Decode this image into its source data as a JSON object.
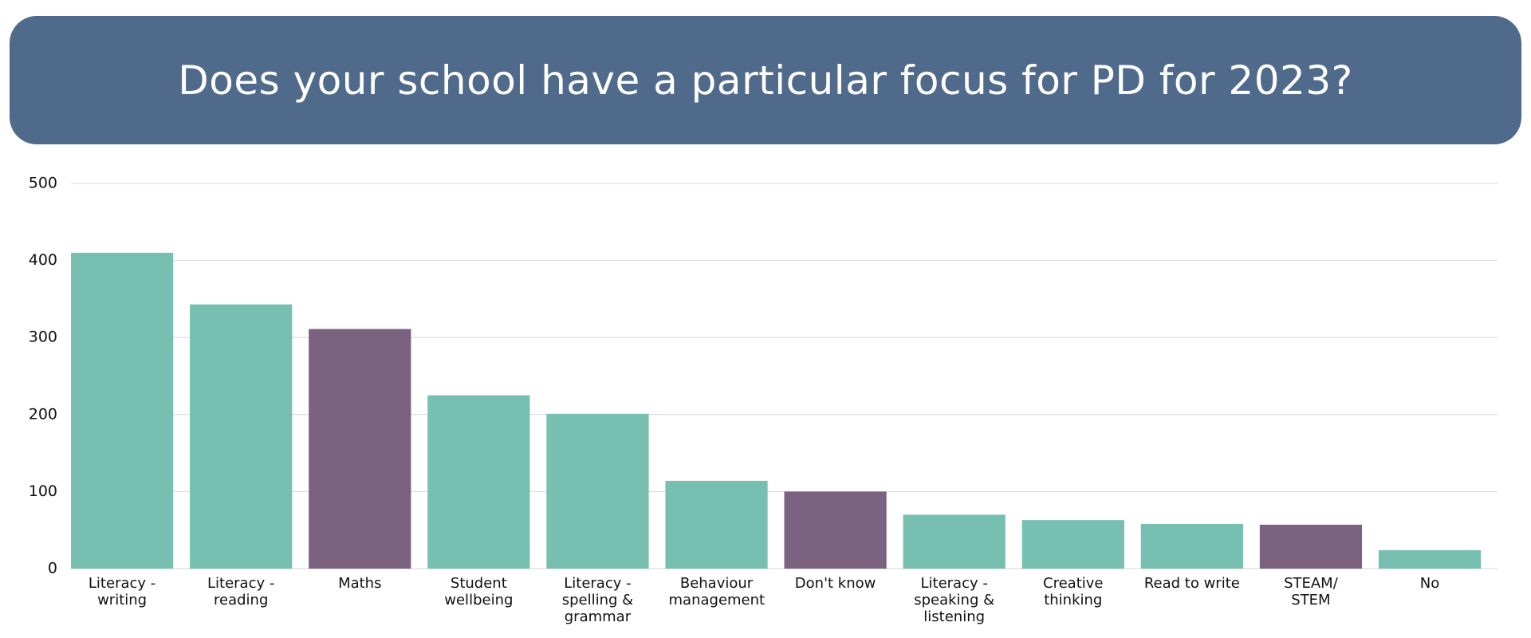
{
  "chart_data": {
    "type": "bar",
    "title": "Does your school have a particular focus for PD for 2023?",
    "categories": [
      "Literacy - writing",
      "Literacy - reading",
      "Maths",
      "Student wellbeing",
      "Literacy - spelling & grammar",
      "Behaviour management",
      "Don't know",
      "Literacy - speaking & listening",
      "Creative thinking",
      "Read to write",
      "STEAM/ STEM",
      "No"
    ],
    "values": [
      410,
      343,
      311,
      225,
      201,
      114,
      100,
      70,
      63,
      58,
      57,
      24
    ],
    "colors": [
      "#77bfb0",
      "#77bfb0",
      "#7b6281",
      "#77bfb0",
      "#77bfb0",
      "#77bfb0",
      "#7b6281",
      "#77bfb0",
      "#77bfb0",
      "#77bfb0",
      "#7b6281",
      "#77bfb0"
    ],
    "ylim": [
      0,
      500
    ],
    "yticks": [
      0,
      100,
      200,
      300,
      400,
      500
    ],
    "grid": true
  }
}
